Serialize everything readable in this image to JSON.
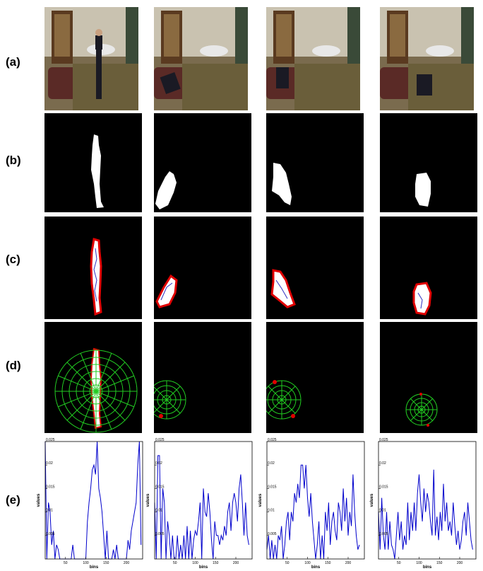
{
  "row_labels": {
    "a": "(a)",
    "b": "(b)",
    "c": "(c)",
    "d": "(d)",
    "e": "(e)"
  },
  "colors": {
    "silhouette": "#ffffff",
    "contour": "#e00000",
    "interior": "#3030c0",
    "polar_grid": "#22cc22",
    "plot_line": "#0000cc"
  },
  "chart_data": [
    {
      "type": "line",
      "xlabel": "bins",
      "ylabel": "values",
      "xlim": [
        0,
        240
      ],
      "ylim": [
        0,
        0.025
      ],
      "xticks": [
        "50",
        "100",
        "150",
        "200"
      ],
      "yticks": [
        "0.005",
        "0.01",
        "0.015",
        "0.02",
        "0.025"
      ],
      "x_step": 4,
      "values": [
        0.025,
        0,
        0.012,
        0.01,
        0.003,
        0.006,
        0,
        0.003,
        0.002,
        0,
        0,
        0,
        0,
        0,
        0,
        0,
        0,
        0.003,
        0,
        0,
        0,
        0,
        0,
        0,
        0,
        0,
        0.008,
        0.012,
        0.015,
        0.019,
        0.02,
        0.018,
        0.025,
        0.015,
        0.013,
        0.01,
        0.005,
        0,
        0.006,
        0,
        0,
        0,
        0.002,
        0,
        0.003,
        0,
        0,
        0,
        0,
        0,
        0,
        0.004,
        0.002,
        0.006,
        0.008,
        0.01,
        0.012,
        0.02,
        0.025,
        0.003
      ]
    },
    {
      "type": "line",
      "xlabel": "bins",
      "ylabel": "values",
      "xlim": [
        0,
        240
      ],
      "ylim": [
        0,
        0.025
      ],
      "xticks": [
        "50",
        "100",
        "150",
        "200"
      ],
      "yticks": [
        "0.005",
        "0.01",
        "0.015",
        "0.02",
        "0.025"
      ],
      "x_step": 4,
      "values": [
        0.012,
        0,
        0.022,
        0.022,
        0,
        0.015,
        0.012,
        0,
        0.008,
        0.005,
        0,
        0.005,
        0,
        0,
        0.005,
        0,
        0.003,
        0,
        0.005,
        0,
        0.007,
        0,
        0.006,
        0,
        0.004,
        0.006,
        0.005,
        0.008,
        0.012,
        0,
        0.015,
        0.01,
        0.009,
        0.014,
        0.01,
        0.004,
        0,
        0.008,
        0.005,
        0.005,
        0.003,
        0.005,
        0.004,
        0.007,
        0.005,
        0.01,
        0.012,
        0.006,
        0.012,
        0.014,
        0.012,
        0.008,
        0.015,
        0.018,
        0.012,
        0.005,
        0.012,
        0.005,
        0.003
      ]
    },
    {
      "type": "line",
      "xlabel": "bins",
      "ylabel": "values",
      "xlim": [
        0,
        240
      ],
      "ylim": [
        0,
        0.025
      ],
      "xticks": [
        "50",
        "100",
        "150",
        "200"
      ],
      "yticks": [
        "0.005",
        "0.01",
        "0.015",
        "0.02",
        "0.025"
      ],
      "x_step": 4,
      "values": [
        0.002,
        0.005,
        0,
        0.004,
        0,
        0.003,
        0,
        0.005,
        0.004,
        0.007,
        0,
        0.003,
        0.008,
        0.01,
        0.004,
        0.01,
        0.008,
        0.014,
        0.012,
        0.016,
        0.013,
        0.02,
        0.02,
        0.015,
        0.02,
        0.013,
        0.009,
        0.014,
        0.008,
        0.004,
        0,
        0.003,
        0.008,
        0,
        0.005,
        0,
        0.01,
        0.006,
        0.012,
        0.003,
        0.008,
        0.01,
        0.006,
        0.004,
        0.012,
        0.01,
        0.006,
        0.015,
        0.008,
        0.013,
        0.005,
        0.01,
        0.007,
        0.018,
        0.01,
        0.005,
        0.002,
        0.003
      ]
    },
    {
      "type": "line",
      "xlabel": "bins",
      "ylabel": "values",
      "xlim": [
        0,
        240
      ],
      "ylim": [
        0,
        0.025
      ],
      "xticks": [
        "50",
        "100",
        "150",
        "200"
      ],
      "yticks": [
        "0.005",
        "0.01",
        "0.015",
        "0.02",
        "0.025"
      ],
      "x_step": 4,
      "values": [
        0.01,
        0.002,
        0.013,
        0.005,
        0.002,
        0.01,
        0.002,
        0.008,
        0.003,
        0.002,
        0,
        0.005,
        0.01,
        0.004,
        0.008,
        0.002,
        0.005,
        0.003,
        0.012,
        0.004,
        0.01,
        0.006,
        0.012,
        0.006,
        0.014,
        0.018,
        0.012,
        0.008,
        0.015,
        0.01,
        0.014,
        0.012,
        0.008,
        0.005,
        0.019,
        0.005,
        0.009,
        0.004,
        0.01,
        0.006,
        0.016,
        0.008,
        0.012,
        0.006,
        0.008,
        0.005,
        0.012,
        0.007,
        0.003,
        0.006,
        0.002,
        0.004,
        0.008,
        0.01,
        0.005,
        0.012,
        0.008,
        0.004,
        0.002
      ]
    }
  ]
}
